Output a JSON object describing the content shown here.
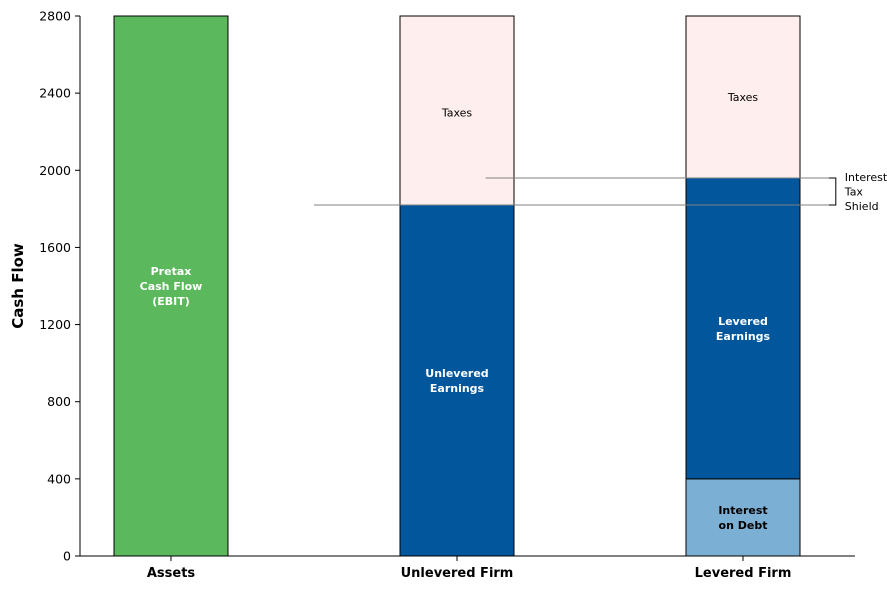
{
  "chart_data": {
    "type": "bar",
    "stacked": true,
    "categories": [
      "Assets",
      "Unlevered Firm",
      "Levered Firm"
    ],
    "ylabel": "Cash Flow",
    "ylim": [
      0,
      2800
    ],
    "yticks": [
      0,
      400,
      800,
      1200,
      1600,
      2000,
      2400,
      2800
    ],
    "grid": false,
    "bars": [
      {
        "category": "Assets",
        "segments": [
          {
            "label": "Pretax\nCash Flow\n(EBIT)",
            "from": 0,
            "to": 2800,
            "color": "#5cb85c",
            "label_color": "#ffffff",
            "label_bold": true
          }
        ]
      },
      {
        "category": "Unlevered Firm",
        "segments": [
          {
            "label": "Unlevered\nEarnings",
            "from": 0,
            "to": 1820,
            "color": "#02569b",
            "label_color": "#ffffff",
            "label_bold": true
          },
          {
            "label": "Taxes",
            "from": 1820,
            "to": 2800,
            "color": "#ffeeee",
            "label_color": "#000000",
            "label_bold": false,
            "label_y": 2300
          }
        ]
      },
      {
        "category": "Levered Firm",
        "segments": [
          {
            "label": "Interest\non Debt",
            "from": 0,
            "to": 400,
            "color": "#7bafd4",
            "label_color": "#000000",
            "label_bold": true
          },
          {
            "label": "Levered\nEarnings",
            "from": 400,
            "to": 1960,
            "color": "#02569b",
            "label_color": "#ffffff",
            "label_bold": true
          },
          {
            "label": "Taxes",
            "from": 1960,
            "to": 2800,
            "color": "#ffeeee",
            "label_color": "#000000",
            "label_bold": false,
            "label_y": 2380
          }
        ]
      }
    ],
    "reference_lines": [
      {
        "y": 1820,
        "from_category": 0.5,
        "to_category": 2.3
      },
      {
        "y": 1960,
        "from_category": 1.1,
        "to_category": 2.3
      }
    ],
    "annotation": {
      "text": "Interest\nTax\nShield",
      "y_low": 1820,
      "y_high": 1960,
      "side": "right of Levered Firm"
    }
  }
}
